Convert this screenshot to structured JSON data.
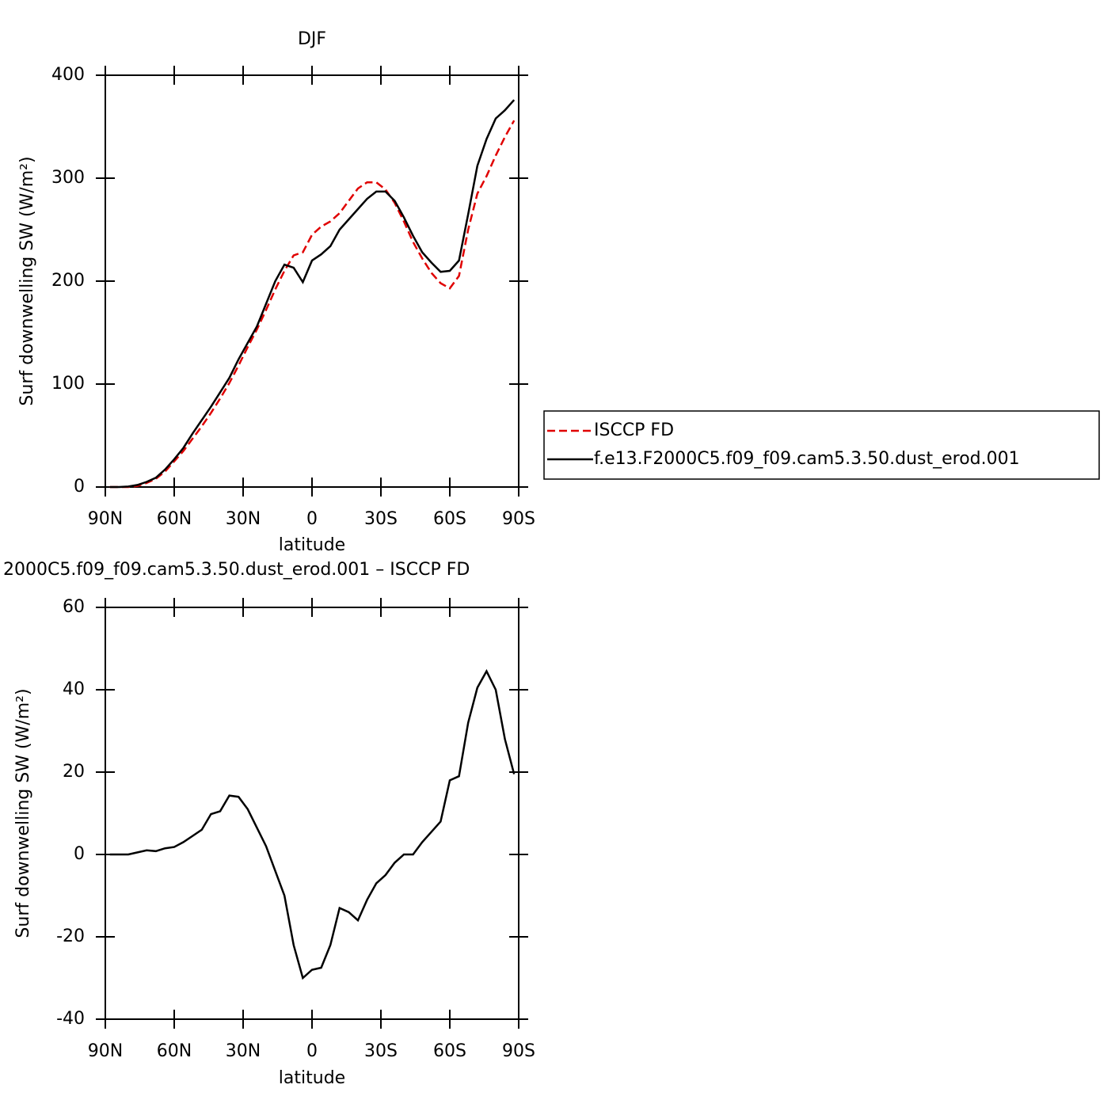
{
  "chart_data": [
    {
      "type": "line",
      "title": "DJF",
      "xlabel": "latitude",
      "ylabel": "Surf downwelling SW (W/m²)",
      "x": [
        88,
        84,
        80,
        76,
        72,
        68,
        64,
        60,
        56,
        52,
        48,
        44,
        40,
        36,
        32,
        28,
        24,
        20,
        16,
        12,
        8,
        4,
        0,
        -4,
        -8,
        -12,
        -16,
        -20,
        -24,
        -28,
        -32,
        -36,
        -40,
        -44,
        -48,
        -52,
        -56,
        -60,
        -64,
        -68,
        -72,
        -76,
        -80,
        -84,
        -88
      ],
      "xlim": [
        90,
        -90
      ],
      "xticks": [
        {
          "value": 90,
          "label": "90N"
        },
        {
          "value": 60,
          "label": "60N"
        },
        {
          "value": 30,
          "label": "30N"
        },
        0,
        {
          "value": -30,
          "label": "30S"
        },
        {
          "value": -60,
          "label": "60S"
        },
        {
          "value": -90,
          "label": "90S"
        }
      ],
      "ylim": [
        0,
        400
      ],
      "yticks": [
        0,
        100,
        200,
        300,
        400
      ],
      "legend": "right",
      "series": [
        {
          "name": "ISCCP FD",
          "color": "#e00000",
          "line_style": "dashed",
          "values": [
            0,
            0,
            0,
            1,
            4,
            8,
            15,
            25,
            35,
            47,
            59,
            72,
            86,
            101,
            118,
            136,
            153,
            172,
            192,
            210,
            225,
            228,
            245,
            253,
            258,
            266,
            278,
            290,
            296,
            296,
            289,
            276,
            258,
            238,
            222,
            208,
            198,
            193,
            205,
            250,
            285,
            302,
            322,
            340,
            356
          ]
        },
        {
          "name": "f.e13.F2000C5.f09_f09.cam5.3.50.dust_erod.001",
          "color": "#000000",
          "line_style": "solid",
          "values": [
            0,
            0,
            0.5,
            2,
            5,
            9,
            17,
            27,
            38,
            52,
            65,
            78,
            92,
            106,
            124,
            140,
            156,
            178,
            200,
            216,
            213,
            199,
            220,
            226,
            234,
            250,
            260,
            270,
            280,
            287,
            287,
            278,
            262,
            244,
            228,
            218,
            209,
            210,
            220,
            265,
            312,
            338,
            358,
            366,
            376
          ]
        }
      ]
    },
    {
      "type": "line",
      "title": "2000C5.f09_f09.cam5.3.50.dust_erod.001 – ISCCP FD",
      "xlabel": "latitude",
      "ylabel": "Surf downwelling SW (W/m²)",
      "x": [
        88,
        84,
        80,
        76,
        72,
        68,
        64,
        60,
        56,
        52,
        48,
        44,
        40,
        36,
        32,
        28,
        24,
        20,
        16,
        12,
        8,
        4,
        0,
        -4,
        -8,
        -12,
        -16,
        -20,
        -24,
        -28,
        -32,
        -36,
        -40,
        -44,
        -48,
        -52,
        -56,
        -60,
        -64,
        -68,
        -72,
        -76,
        -80,
        -84,
        -88
      ],
      "xlim": [
        90,
        -90
      ],
      "xticks": [
        {
          "value": 90,
          "label": "90N"
        },
        {
          "value": 60,
          "label": "60N"
        },
        {
          "value": 30,
          "label": "30N"
        },
        0,
        {
          "value": -30,
          "label": "30S"
        },
        {
          "value": -60,
          "label": "60S"
        },
        {
          "value": -90,
          "label": "90S"
        }
      ],
      "ylim": [
        -40,
        60
      ],
      "yticks": [
        -40,
        -20,
        0,
        20,
        40,
        60
      ],
      "series": [
        {
          "color": "#000000",
          "line_style": "solid",
          "values": [
            0,
            0,
            0,
            0.5,
            1,
            0.8,
            1.5,
            1.8,
            3,
            4.5,
            6,
            9.8,
            10.5,
            14.3,
            14,
            11,
            6.5,
            2,
            -4,
            -10,
            -22,
            -30,
            -28,
            -27.5,
            -22,
            -13,
            -14,
            -16,
            -11,
            -7,
            -5,
            -2,
            0,
            0,
            3,
            5.5,
            8,
            18,
            19,
            32,
            40.5,
            44.5,
            40,
            28,
            19.5
          ]
        }
      ]
    }
  ]
}
